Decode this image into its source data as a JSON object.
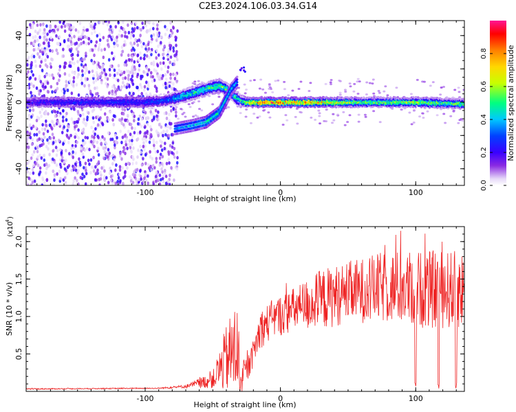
{
  "title": "C2E3.2024.106.03.34.G14",
  "chart_data": [
    {
      "type": "heatmap",
      "title": "",
      "xlabel": "Height of straight line (km)",
      "ylabel": "Frequency (Hz)",
      "xlim": [
        -188,
        136
      ],
      "ylim": [
        -50,
        49
      ],
      "xticks": [
        "-100",
        "0",
        "100"
      ],
      "yticks": [
        "-40",
        "-20",
        "0",
        "20",
        "40"
      ],
      "colorbar": {
        "label": "Normalized spectral amplitude",
        "range": [
          0.0,
          1.0
        ],
        "ticks": [
          "0.0",
          "0.2",
          "0.4",
          "0.6",
          "0.8"
        ],
        "colormap": [
          "#ffffff",
          "#e6d9f8",
          "#8a2be2",
          "#3a00ff",
          "#0040ff",
          "#00c8ff",
          "#00ff80",
          "#c8ff00",
          "#ffd700",
          "#ff7f00",
          "#ff0000",
          "#ff1493"
        ]
      },
      "ridge": {
        "description_points": [
          {
            "x": -188,
            "y": 0,
            "amp": 0.2
          },
          {
            "x": -150,
            "y": 0,
            "amp": 0.25
          },
          {
            "x": -100,
            "y": 0,
            "amp": 0.25
          },
          {
            "x": -85,
            "y": 1,
            "amp": 0.3
          },
          {
            "x": -70,
            "y": 4,
            "amp": 0.45
          },
          {
            "x": -55,
            "y": 8,
            "amp": 0.5
          },
          {
            "x": -45,
            "y": 10,
            "amp": 0.55
          },
          {
            "x": -38,
            "y": 7,
            "amp": 0.5
          },
          {
            "x": -32,
            "y": 2,
            "amp": 0.45
          },
          {
            "x": -25,
            "y": 0,
            "amp": 0.6
          },
          {
            "x": -10,
            "y": 0,
            "amp": 0.85
          },
          {
            "x": 0,
            "y": 0,
            "amp": 0.8
          },
          {
            "x": 20,
            "y": 0,
            "amp": 0.75
          },
          {
            "x": 60,
            "y": 0,
            "amp": 0.55
          },
          {
            "x": 100,
            "y": 0,
            "amp": 0.6
          },
          {
            "x": 136,
            "y": -1,
            "amp": 0.55
          }
        ],
        "secondary_branch": [
          {
            "x": -78,
            "y": -16,
            "amp": 0.35
          },
          {
            "x": -65,
            "y": -14,
            "amp": 0.4
          },
          {
            "x": -55,
            "y": -12,
            "amp": 0.45
          },
          {
            "x": -45,
            "y": -6,
            "amp": 0.45
          },
          {
            "x": -36,
            "y": 8,
            "amp": 0.4
          },
          {
            "x": -32,
            "y": 12,
            "amp": 0.35
          }
        ],
        "noise_region_x": [
          -188,
          -82
        ]
      }
    },
    {
      "type": "line",
      "title": "",
      "xlabel": "Height of straight line (km)",
      "ylabel": "SNR (10 * v/v)",
      "y_multiplier": "(x10",
      "y_multiplier_exp": "4",
      "xlim": [
        -188,
        136
      ],
      "ylim": [
        0,
        2.2
      ],
      "xticks": [
        "-100",
        "0",
        "100"
      ],
      "yticks": [
        "0.5",
        "1.0",
        "1.5",
        "2.0"
      ],
      "color": "#ee2222",
      "envelope": [
        {
          "x": -188,
          "base": 0.03,
          "amp": 0.01
        },
        {
          "x": -90,
          "base": 0.04,
          "amp": 0.01
        },
        {
          "x": -70,
          "base": 0.06,
          "amp": 0.03
        },
        {
          "x": -50,
          "base": 0.12,
          "amp": 0.15
        },
        {
          "x": -40,
          "base": 0.3,
          "amp": 0.6
        },
        {
          "x": -33,
          "base": 0.35,
          "amp": 0.9
        },
        {
          "x": -28,
          "base": 0.1,
          "amp": 0.3
        },
        {
          "x": -22,
          "base": 0.35,
          "amp": 0.2
        },
        {
          "x": -15,
          "base": 0.75,
          "amp": 0.35
        },
        {
          "x": -5,
          "base": 0.9,
          "amp": 0.35
        },
        {
          "x": 10,
          "base": 1.0,
          "amp": 0.4
        },
        {
          "x": 30,
          "base": 1.1,
          "amp": 0.55
        },
        {
          "x": 50,
          "base": 1.2,
          "amp": 0.55
        },
        {
          "x": 80,
          "base": 1.25,
          "amp": 0.65
        },
        {
          "x": 110,
          "base": 1.2,
          "amp": 0.7
        },
        {
          "x": 136,
          "base": 1.2,
          "amp": 0.7
        }
      ],
      "dropouts_x": [
        100,
        117,
        130
      ]
    }
  ]
}
